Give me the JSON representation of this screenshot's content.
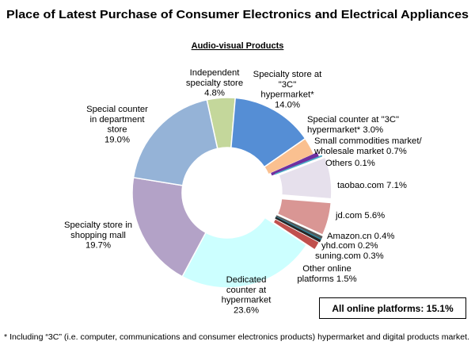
{
  "chart_data": {
    "type": "pie",
    "title": "Place of Latest Purchase of Consumer Electronics and Electrical Appliances",
    "subtitle": "Audio-visual Products",
    "slices": [
      {
        "label_lines": [
          "Independent",
          "specialty store",
          "4.8%"
        ],
        "value": 4.8,
        "color": "#c4d79b"
      },
      {
        "label_lines": [
          "Specialty store at",
          "\"3C\"",
          "hypermarket*",
          "14.0%"
        ],
        "value": 14.0,
        "color": "#558ed5"
      },
      {
        "label_lines": [
          "Special counter at \"3C\"",
          "hypermarket* 3.0%"
        ],
        "value": 3.0,
        "color": "#fac090"
      },
      {
        "label_lines": [
          "Small commodities market/",
          "wholesale market 0.7%"
        ],
        "value": 0.7,
        "color": "#7030a0"
      },
      {
        "label_lines": [
          "Others 0.1%"
        ],
        "value": 0.1,
        "color": "#4bacc6"
      },
      {
        "label_lines": [
          "taobao.com 7.1%"
        ],
        "value": 7.1,
        "color": "#e6e0ec"
      },
      {
        "label_lines": [
          "jd.com 5.6%"
        ],
        "value": 5.6,
        "color": "#d99694"
      },
      {
        "label_lines": [
          "Amazon.cn 0.4%"
        ],
        "value": 0.4,
        "color": "#595959"
      },
      {
        "label_lines": [
          "yhd.com 0.2%"
        ],
        "value": 0.2,
        "color": "#31859c"
      },
      {
        "label_lines": [
          "suning.com 0.3%"
        ],
        "value": 0.3,
        "color": "#262626"
      },
      {
        "label_lines": [
          "Other online",
          "platforms 1.5%"
        ],
        "value": 1.5,
        "color": "#c0504d"
      },
      {
        "label_lines": [
          "Dedicated",
          "counter at",
          "hypermarket",
          "23.6%"
        ],
        "value": 23.6,
        "color": "#ccffff"
      },
      {
        "label_lines": [
          "Specialty store in",
          "shopping mall",
          "19.7%"
        ],
        "value": 19.7,
        "color": "#b3a2c7"
      },
      {
        "label_lines": [
          "Special counter",
          "in department",
          "store",
          "19.0%"
        ],
        "value": 19.0,
        "color": "#95b3d7"
      }
    ],
    "annotation": "All online platforms: 15.1%",
    "footnote": "* Including “3C” (i.e. computer, communications and consumer electronics products) hypermarket and digital products market."
  }
}
